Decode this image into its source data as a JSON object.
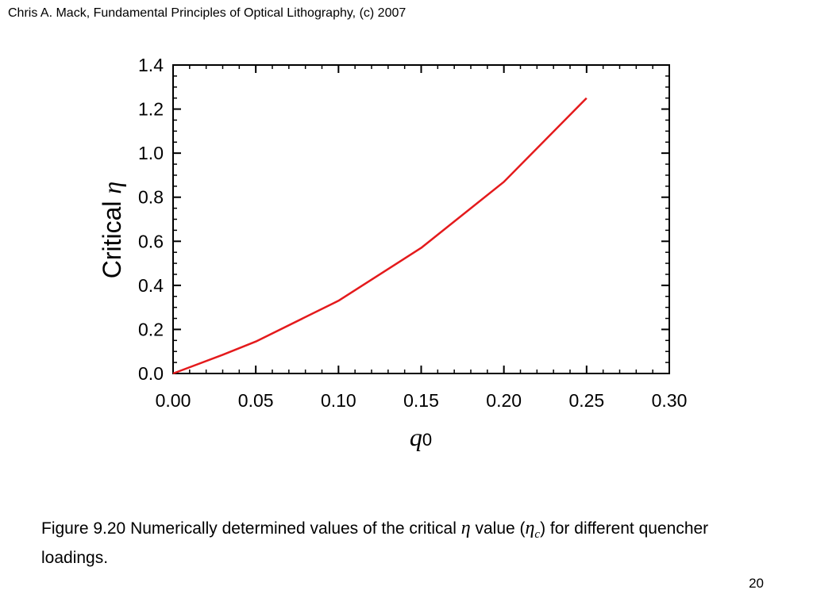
{
  "header": {
    "text": "Chris A. Mack, Fundamental Principles of Optical Lithography, (c) 2007"
  },
  "caption": {
    "prefix": "Figure 9.20  Numerically determined values of the critical ",
    "eta": "η",
    "middle": " value (",
    "eta_c": "η",
    "eta_c_sub": "c",
    "suffix": ") for different quencher loadings."
  },
  "page_number": "20",
  "colors": {
    "series": "#e41a1c",
    "axis": "#000000"
  },
  "chart_data": {
    "type": "line",
    "title": "",
    "xlabel": {
      "symbol": "q",
      "subscript": "0"
    },
    "ylabel": {
      "text": "Critical ",
      "symbol": "η"
    },
    "xlim": [
      0,
      0.3
    ],
    "ylim": [
      0,
      1.4
    ],
    "x_ticks": [
      0.0,
      0.05,
      0.1,
      0.15,
      0.2,
      0.25,
      0.3
    ],
    "x_tick_labels": [
      "0.00",
      "0.05",
      "0.10",
      "0.15",
      "0.20",
      "0.25",
      "0.30"
    ],
    "y_ticks": [
      0.0,
      0.2,
      0.4,
      0.6,
      0.8,
      1.0,
      1.2,
      1.4
    ],
    "y_tick_labels": [
      "0.0",
      "0.2",
      "0.4",
      "0.6",
      "0.8",
      "1.0",
      "1.2",
      "1.4"
    ],
    "x_minor_step": 0.01,
    "y_minor_step": 0.05,
    "grid": false,
    "legend": "none",
    "series": [
      {
        "x": [
          0.0,
          0.03,
          0.05,
          0.1,
          0.15,
          0.2,
          0.25
        ],
        "y": [
          0.0,
          0.085,
          0.145,
          0.33,
          0.57,
          0.87,
          1.25
        ]
      }
    ]
  }
}
